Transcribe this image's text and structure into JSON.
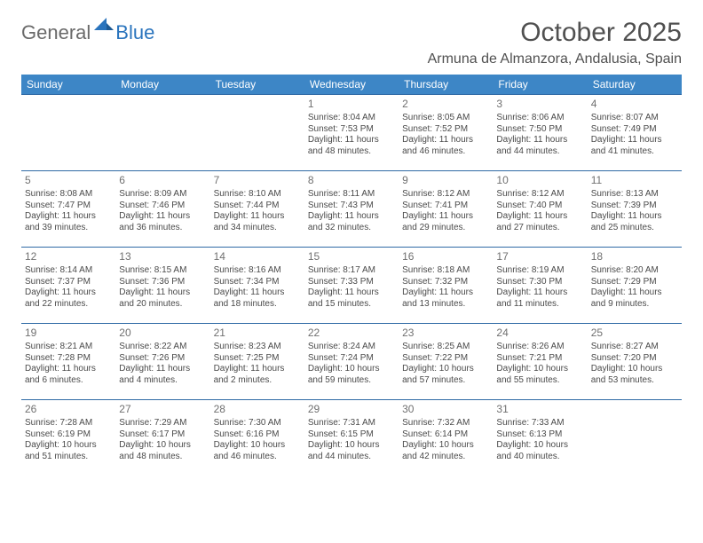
{
  "logo": {
    "general": "General",
    "blue": "Blue"
  },
  "title": "October 2025",
  "location": "Armuna de Almanzora, Andalusia, Spain",
  "colors": {
    "header_bg": "#3d86c6",
    "header_text": "#ffffff",
    "row_border": "#2f6aa5",
    "page_bg": "#ffffff",
    "text": "#4a4a4a",
    "logo_general": "#6a6a6a",
    "logo_blue": "#2a74bd"
  },
  "calendar": {
    "type": "table",
    "columns": [
      "Sunday",
      "Monday",
      "Tuesday",
      "Wednesday",
      "Thursday",
      "Friday",
      "Saturday"
    ],
    "weeks": [
      [
        null,
        null,
        null,
        {
          "day": "1",
          "sunrise": "Sunrise: 8:04 AM",
          "sunset": "Sunset: 7:53 PM",
          "daylight": "Daylight: 11 hours and 48 minutes."
        },
        {
          "day": "2",
          "sunrise": "Sunrise: 8:05 AM",
          "sunset": "Sunset: 7:52 PM",
          "daylight": "Daylight: 11 hours and 46 minutes."
        },
        {
          "day": "3",
          "sunrise": "Sunrise: 8:06 AM",
          "sunset": "Sunset: 7:50 PM",
          "daylight": "Daylight: 11 hours and 44 minutes."
        },
        {
          "day": "4",
          "sunrise": "Sunrise: 8:07 AM",
          "sunset": "Sunset: 7:49 PM",
          "daylight": "Daylight: 11 hours and 41 minutes."
        }
      ],
      [
        {
          "day": "5",
          "sunrise": "Sunrise: 8:08 AM",
          "sunset": "Sunset: 7:47 PM",
          "daylight": "Daylight: 11 hours and 39 minutes."
        },
        {
          "day": "6",
          "sunrise": "Sunrise: 8:09 AM",
          "sunset": "Sunset: 7:46 PM",
          "daylight": "Daylight: 11 hours and 36 minutes."
        },
        {
          "day": "7",
          "sunrise": "Sunrise: 8:10 AM",
          "sunset": "Sunset: 7:44 PM",
          "daylight": "Daylight: 11 hours and 34 minutes."
        },
        {
          "day": "8",
          "sunrise": "Sunrise: 8:11 AM",
          "sunset": "Sunset: 7:43 PM",
          "daylight": "Daylight: 11 hours and 32 minutes."
        },
        {
          "day": "9",
          "sunrise": "Sunrise: 8:12 AM",
          "sunset": "Sunset: 7:41 PM",
          "daylight": "Daylight: 11 hours and 29 minutes."
        },
        {
          "day": "10",
          "sunrise": "Sunrise: 8:12 AM",
          "sunset": "Sunset: 7:40 PM",
          "daylight": "Daylight: 11 hours and 27 minutes."
        },
        {
          "day": "11",
          "sunrise": "Sunrise: 8:13 AM",
          "sunset": "Sunset: 7:39 PM",
          "daylight": "Daylight: 11 hours and 25 minutes."
        }
      ],
      [
        {
          "day": "12",
          "sunrise": "Sunrise: 8:14 AM",
          "sunset": "Sunset: 7:37 PM",
          "daylight": "Daylight: 11 hours and 22 minutes."
        },
        {
          "day": "13",
          "sunrise": "Sunrise: 8:15 AM",
          "sunset": "Sunset: 7:36 PM",
          "daylight": "Daylight: 11 hours and 20 minutes."
        },
        {
          "day": "14",
          "sunrise": "Sunrise: 8:16 AM",
          "sunset": "Sunset: 7:34 PM",
          "daylight": "Daylight: 11 hours and 18 minutes."
        },
        {
          "day": "15",
          "sunrise": "Sunrise: 8:17 AM",
          "sunset": "Sunset: 7:33 PM",
          "daylight": "Daylight: 11 hours and 15 minutes."
        },
        {
          "day": "16",
          "sunrise": "Sunrise: 8:18 AM",
          "sunset": "Sunset: 7:32 PM",
          "daylight": "Daylight: 11 hours and 13 minutes."
        },
        {
          "day": "17",
          "sunrise": "Sunrise: 8:19 AM",
          "sunset": "Sunset: 7:30 PM",
          "daylight": "Daylight: 11 hours and 11 minutes."
        },
        {
          "day": "18",
          "sunrise": "Sunrise: 8:20 AM",
          "sunset": "Sunset: 7:29 PM",
          "daylight": "Daylight: 11 hours and 9 minutes."
        }
      ],
      [
        {
          "day": "19",
          "sunrise": "Sunrise: 8:21 AM",
          "sunset": "Sunset: 7:28 PM",
          "daylight": "Daylight: 11 hours and 6 minutes."
        },
        {
          "day": "20",
          "sunrise": "Sunrise: 8:22 AM",
          "sunset": "Sunset: 7:26 PM",
          "daylight": "Daylight: 11 hours and 4 minutes."
        },
        {
          "day": "21",
          "sunrise": "Sunrise: 8:23 AM",
          "sunset": "Sunset: 7:25 PM",
          "daylight": "Daylight: 11 hours and 2 minutes."
        },
        {
          "day": "22",
          "sunrise": "Sunrise: 8:24 AM",
          "sunset": "Sunset: 7:24 PM",
          "daylight": "Daylight: 10 hours and 59 minutes."
        },
        {
          "day": "23",
          "sunrise": "Sunrise: 8:25 AM",
          "sunset": "Sunset: 7:22 PM",
          "daylight": "Daylight: 10 hours and 57 minutes."
        },
        {
          "day": "24",
          "sunrise": "Sunrise: 8:26 AM",
          "sunset": "Sunset: 7:21 PM",
          "daylight": "Daylight: 10 hours and 55 minutes."
        },
        {
          "day": "25",
          "sunrise": "Sunrise: 8:27 AM",
          "sunset": "Sunset: 7:20 PM",
          "daylight": "Daylight: 10 hours and 53 minutes."
        }
      ],
      [
        {
          "day": "26",
          "sunrise": "Sunrise: 7:28 AM",
          "sunset": "Sunset: 6:19 PM",
          "daylight": "Daylight: 10 hours and 51 minutes."
        },
        {
          "day": "27",
          "sunrise": "Sunrise: 7:29 AM",
          "sunset": "Sunset: 6:17 PM",
          "daylight": "Daylight: 10 hours and 48 minutes."
        },
        {
          "day": "28",
          "sunrise": "Sunrise: 7:30 AM",
          "sunset": "Sunset: 6:16 PM",
          "daylight": "Daylight: 10 hours and 46 minutes."
        },
        {
          "day": "29",
          "sunrise": "Sunrise: 7:31 AM",
          "sunset": "Sunset: 6:15 PM",
          "daylight": "Daylight: 10 hours and 44 minutes."
        },
        {
          "day": "30",
          "sunrise": "Sunrise: 7:32 AM",
          "sunset": "Sunset: 6:14 PM",
          "daylight": "Daylight: 10 hours and 42 minutes."
        },
        {
          "day": "31",
          "sunrise": "Sunrise: 7:33 AM",
          "sunset": "Sunset: 6:13 PM",
          "daylight": "Daylight: 10 hours and 40 minutes."
        },
        null
      ]
    ]
  }
}
